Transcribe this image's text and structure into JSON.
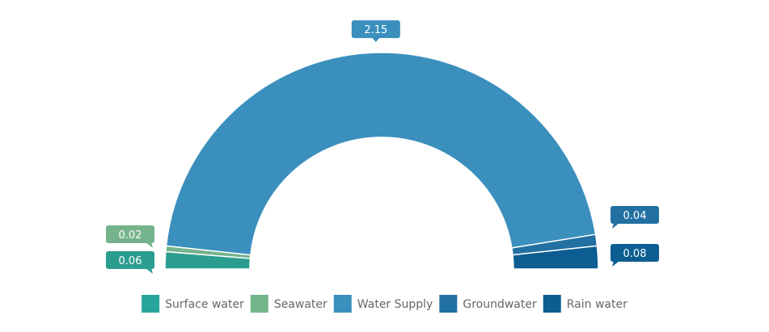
{
  "chart_data": {
    "type": "pie",
    "variant": "semi-donut",
    "title": "",
    "legend_position": "bottom",
    "series": [
      {
        "name": "Surface water",
        "value": 0.06,
        "label": "0.06",
        "color": "#2a9d8f",
        "legend_color": "#26a69a"
      },
      {
        "name": "Seawater",
        "value": 0.02,
        "label": "0.02",
        "color": "#74b38c",
        "legend_color": "#73b48b"
      },
      {
        "name": "Water Supply",
        "value": 2.15,
        "label": "2.15",
        "color": "#3a8fbd",
        "legend_color": "#3a8fbd"
      },
      {
        "name": "Groundwater",
        "value": 0.04,
        "label": "0.04",
        "color": "#2270a2",
        "legend_color": "#2270a2"
      },
      {
        "name": "Rain water",
        "value": 0.08,
        "label": "0.08",
        "color": "#0c5d91",
        "legend_color": "#0c5d91"
      }
    ]
  }
}
